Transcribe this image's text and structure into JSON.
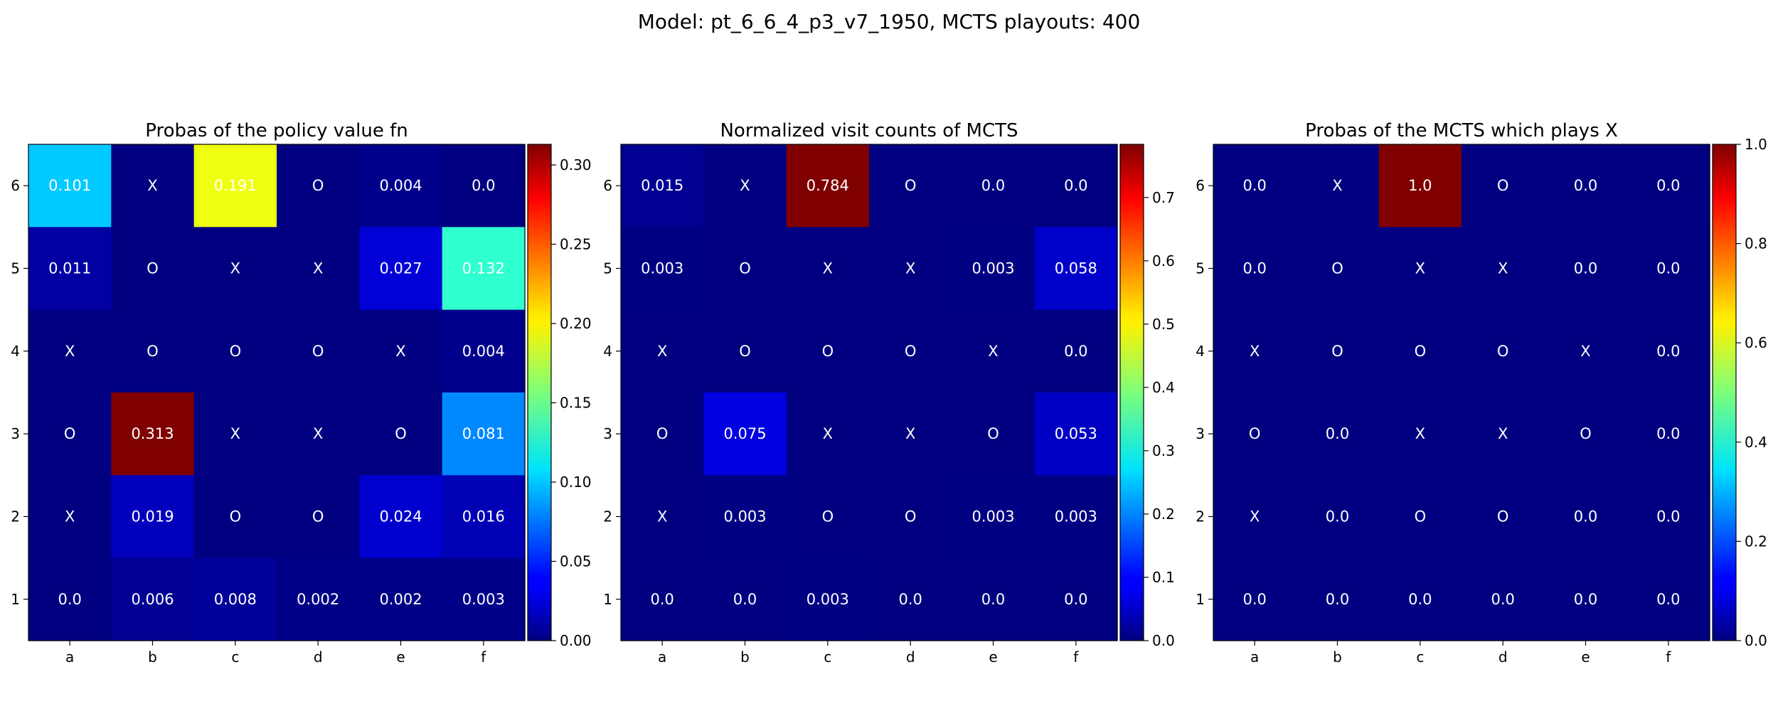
{
  "title": "Model: pt_6_6_4_p3_v7_1950, MCTS playouts: 400",
  "chart_data": [
    {
      "type": "heatmap",
      "title": "Probas of the policy value fn",
      "x_ticks": [
        "a",
        "b",
        "c",
        "d",
        "e",
        "f"
      ],
      "y_ticks": [
        "6",
        "5",
        "4",
        "3",
        "2",
        "1"
      ],
      "colormap": "jet",
      "vmin": 0,
      "vmax": 0.313,
      "colorbar_ticks": [
        "0.00",
        "0.05",
        "0.10",
        "0.15",
        "0.20",
        "0.25",
        "0.30"
      ],
      "values": [
        [
          0.101,
          0,
          0.191,
          0,
          0.004,
          0.0
        ],
        [
          0.011,
          0,
          0,
          0,
          0.027,
          0.132
        ],
        [
          0,
          0,
          0,
          0,
          0,
          0.004
        ],
        [
          0,
          0.313,
          0,
          0,
          0,
          0.081
        ],
        [
          0,
          0.019,
          0,
          0,
          0.024,
          0.016
        ],
        [
          0.0,
          0.006,
          0.008,
          0.002,
          0.002,
          0.003
        ]
      ],
      "labels": [
        [
          "0.101",
          "X",
          "0.191",
          "O",
          "0.004",
          "0.0"
        ],
        [
          "0.011",
          "O",
          "X",
          "X",
          "0.027",
          "0.132"
        ],
        [
          "X",
          "O",
          "O",
          "O",
          "X",
          "0.004"
        ],
        [
          "O",
          "0.313",
          "X",
          "X",
          "O",
          "0.081"
        ],
        [
          "X",
          "0.019",
          "O",
          "O",
          "0.024",
          "0.016"
        ],
        [
          "0.0",
          "0.006",
          "0.008",
          "0.002",
          "0.002",
          "0.003"
        ]
      ]
    },
    {
      "type": "heatmap",
      "title": "Normalized visit counts of MCTS",
      "x_ticks": [
        "a",
        "b",
        "c",
        "d",
        "e",
        "f"
      ],
      "y_ticks": [
        "6",
        "5",
        "4",
        "3",
        "2",
        "1"
      ],
      "colormap": "jet",
      "vmin": 0,
      "vmax": 0.784,
      "colorbar_ticks": [
        "0.0",
        "0.1",
        "0.2",
        "0.3",
        "0.4",
        "0.5",
        "0.6",
        "0.7"
      ],
      "values": [
        [
          0.015,
          0,
          0.784,
          0,
          0.0,
          0.0
        ],
        [
          0.003,
          0,
          0,
          0,
          0.003,
          0.058
        ],
        [
          0,
          0,
          0,
          0,
          0,
          0.0
        ],
        [
          0,
          0.075,
          0,
          0,
          0,
          0.053
        ],
        [
          0,
          0.003,
          0,
          0,
          0.003,
          0.003
        ],
        [
          0.0,
          0.0,
          0.003,
          0.0,
          0.0,
          0.0
        ]
      ],
      "labels": [
        [
          "0.015",
          "X",
          "0.784",
          "O",
          "0.0",
          "0.0"
        ],
        [
          "0.003",
          "O",
          "X",
          "X",
          "0.003",
          "0.058"
        ],
        [
          "X",
          "O",
          "O",
          "O",
          "X",
          "0.0"
        ],
        [
          "O",
          "0.075",
          "X",
          "X",
          "O",
          "0.053"
        ],
        [
          "X",
          "0.003",
          "O",
          "O",
          "0.003",
          "0.003"
        ],
        [
          "0.0",
          "0.0",
          "0.003",
          "0.0",
          "0.0",
          "0.0"
        ]
      ]
    },
    {
      "type": "heatmap",
      "title": "Probas of the MCTS which plays X",
      "x_ticks": [
        "a",
        "b",
        "c",
        "d",
        "e",
        "f"
      ],
      "y_ticks": [
        "6",
        "5",
        "4",
        "3",
        "2",
        "1"
      ],
      "colormap": "jet",
      "vmin": 0,
      "vmax": 1.0,
      "colorbar_ticks": [
        "0.0",
        "0.2",
        "0.4",
        "0.6",
        "0.8",
        "1.0"
      ],
      "values": [
        [
          0.0,
          0,
          1.0,
          0,
          0.0,
          0.0
        ],
        [
          0.0,
          0,
          0,
          0,
          0.0,
          0.0
        ],
        [
          0,
          0,
          0,
          0,
          0,
          0.0
        ],
        [
          0,
          0.0,
          0,
          0,
          0,
          0.0
        ],
        [
          0,
          0.0,
          0,
          0,
          0.0,
          0.0
        ],
        [
          0.0,
          0.0,
          0.0,
          0.0,
          0.0,
          0.0
        ]
      ],
      "labels": [
        [
          "0.0",
          "X",
          "1.0",
          "O",
          "0.0",
          "0.0"
        ],
        [
          "0.0",
          "O",
          "X",
          "X",
          "0.0",
          "0.0"
        ],
        [
          "X",
          "O",
          "O",
          "O",
          "X",
          "0.0"
        ],
        [
          "O",
          "0.0",
          "X",
          "X",
          "O",
          "0.0"
        ],
        [
          "X",
          "0.0",
          "O",
          "O",
          "0.0",
          "0.0"
        ],
        [
          "0.0",
          "0.0",
          "0.0",
          "0.0",
          "0.0",
          "0.0"
        ]
      ]
    }
  ]
}
